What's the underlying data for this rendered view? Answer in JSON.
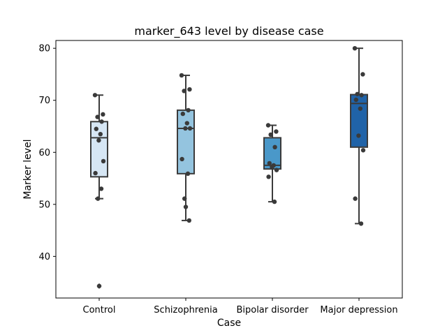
{
  "chart_data": {
    "type": "box",
    "title": "marker_643 level by disease case",
    "xlabel": "Case",
    "ylabel": "Marker level",
    "ylim": [
      32,
      81.5
    ],
    "yticks": [
      40,
      50,
      60,
      70,
      80
    ],
    "grid": false,
    "categories": [
      "Control",
      "Schizophrenia",
      "Bipolar disorder",
      "Major depression"
    ],
    "colors": [
      "#d6e6f4",
      "#94c4df",
      "#4a98c9",
      "#2063a8"
    ],
    "boxes": [
      {
        "category": "Control",
        "whisker_low": 51.1,
        "q1": 55.3,
        "median": 62.8,
        "q3": 65.9,
        "whisker_high": 71.0,
        "outliers": [
          34.3
        ]
      },
      {
        "category": "Schizophrenia",
        "whisker_low": 46.9,
        "q1": 55.9,
        "median": 64.6,
        "q3": 68.1,
        "whisker_high": 74.8,
        "outliers": []
      },
      {
        "category": "Bipolar disorder",
        "whisker_low": 50.5,
        "q1": 56.8,
        "median": 57.5,
        "q3": 62.8,
        "whisker_high": 65.2,
        "outliers": []
      },
      {
        "category": "Major depression",
        "whisker_low": 46.3,
        "q1": 61.0,
        "median": 69.4,
        "q3": 71.1,
        "whisker_high": 80.0,
        "outliers": []
      }
    ],
    "points": [
      {
        "category": "Control",
        "y": 71.0
      },
      {
        "category": "Control",
        "y": 67.3
      },
      {
        "category": "Control",
        "y": 66.8
      },
      {
        "category": "Control",
        "y": 65.9
      },
      {
        "category": "Control",
        "y": 64.5
      },
      {
        "category": "Control",
        "y": 63.5
      },
      {
        "category": "Control",
        "y": 62.3
      },
      {
        "category": "Control",
        "y": 58.3
      },
      {
        "category": "Control",
        "y": 56.0
      },
      {
        "category": "Control",
        "y": 53.0
      },
      {
        "category": "Control",
        "y": 51.1
      },
      {
        "category": "Control",
        "y": 34.3
      },
      {
        "category": "Schizophrenia",
        "y": 74.8
      },
      {
        "category": "Schizophrenia",
        "y": 72.1
      },
      {
        "category": "Schizophrenia",
        "y": 71.8
      },
      {
        "category": "Schizophrenia",
        "y": 68.1
      },
      {
        "category": "Schizophrenia",
        "y": 67.4
      },
      {
        "category": "Schizophrenia",
        "y": 65.6
      },
      {
        "category": "Schizophrenia",
        "y": 64.6
      },
      {
        "category": "Schizophrenia",
        "y": 64.6
      },
      {
        "category": "Schizophrenia",
        "y": 58.7
      },
      {
        "category": "Schizophrenia",
        "y": 55.9
      },
      {
        "category": "Schizophrenia",
        "y": 51.1
      },
      {
        "category": "Schizophrenia",
        "y": 49.5
      },
      {
        "category": "Schizophrenia",
        "y": 46.9
      },
      {
        "category": "Bipolar disorder",
        "y": 65.2
      },
      {
        "category": "Bipolar disorder",
        "y": 64.0
      },
      {
        "category": "Bipolar disorder",
        "y": 63.4
      },
      {
        "category": "Bipolar disorder",
        "y": 61.0
      },
      {
        "category": "Bipolar disorder",
        "y": 57.9
      },
      {
        "category": "Bipolar disorder",
        "y": 57.5
      },
      {
        "category": "Bipolar disorder",
        "y": 57.2
      },
      {
        "category": "Bipolar disorder",
        "y": 56.6
      },
      {
        "category": "Bipolar disorder",
        "y": 55.3
      },
      {
        "category": "Bipolar disorder",
        "y": 50.5
      },
      {
        "category": "Major depression",
        "y": 80.0
      },
      {
        "category": "Major depression",
        "y": 75.0
      },
      {
        "category": "Major depression",
        "y": 71.2
      },
      {
        "category": "Major depression",
        "y": 71.0
      },
      {
        "category": "Major depression",
        "y": 70.1
      },
      {
        "category": "Major depression",
        "y": 68.4
      },
      {
        "category": "Major depression",
        "y": 63.2
      },
      {
        "category": "Major depression",
        "y": 60.4
      },
      {
        "category": "Major depression",
        "y": 51.1
      },
      {
        "category": "Major depression",
        "y": 46.3
      }
    ]
  }
}
